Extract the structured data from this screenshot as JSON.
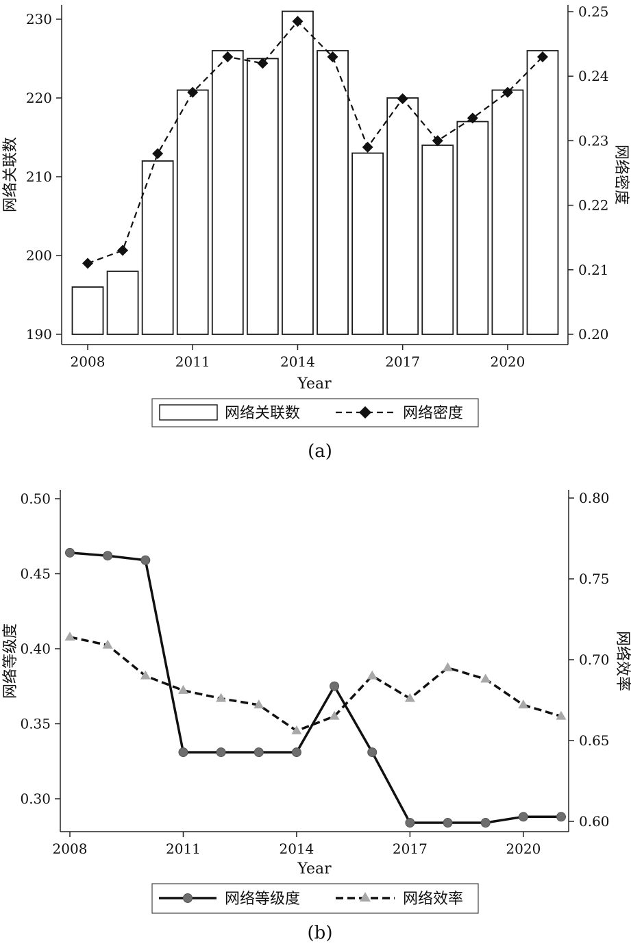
{
  "chart_data": [
    {
      "type": "bar",
      "panel_label": "(a)",
      "x": [
        2008,
        2009,
        2010,
        2011,
        2012,
        2013,
        2014,
        2015,
        2016,
        2017,
        2018,
        2019,
        2020,
        2021
      ],
      "xticks": [
        "2008",
        "2011",
        "2014",
        "2017",
        "2020"
      ],
      "xlabel": "Year",
      "ylabel_left": "网络关联数",
      "ylabel_right": "网络密度",
      "ylim_left": [
        190,
        230
      ],
      "ylim_right": [
        0.2,
        0.25
      ],
      "yticks_left": [
        "190",
        "200",
        "210",
        "220",
        "230"
      ],
      "yticks_right": [
        "0.20",
        "0.21",
        "0.22",
        "0.23",
        "0.24",
        "0.25"
      ],
      "grid": false,
      "legend_position": "bottom",
      "series": [
        {
          "name": "网络关联数",
          "kind": "bar",
          "axis": "left",
          "values": [
            196,
            198,
            212,
            221,
            226,
            225,
            231,
            226,
            213,
            220,
            214,
            217,
            221,
            226
          ]
        },
        {
          "name": "网络密度",
          "kind": "line",
          "style": "dashed",
          "marker": "diamond",
          "axis": "right",
          "values": [
            0.211,
            0.213,
            0.228,
            0.2375,
            0.243,
            0.242,
            0.2485,
            0.243,
            0.229,
            0.2365,
            0.23,
            0.2335,
            0.2375,
            0.243
          ]
        }
      ]
    },
    {
      "type": "line",
      "panel_label": "(b)",
      "x": [
        2008,
        2009,
        2010,
        2011,
        2012,
        2013,
        2014,
        2015,
        2016,
        2017,
        2018,
        2019,
        2020,
        2021
      ],
      "xticks": [
        "2008",
        "2011",
        "2014",
        "2017",
        "2020"
      ],
      "xlabel": "Year",
      "ylabel_left": "网络等级度",
      "ylabel_right": "网络效率",
      "ylim_left": [
        0.28,
        0.5
      ],
      "ylim_right": [
        0.6,
        0.8
      ],
      "yticks_left": [
        "0.30",
        "0.35",
        "0.40",
        "0.45",
        "0.50"
      ],
      "yticks_right": [
        "0.60",
        "0.65",
        "0.70",
        "0.75",
        "0.80"
      ],
      "grid": false,
      "legend_position": "bottom",
      "series": [
        {
          "name": "网络等级度",
          "kind": "line",
          "style": "solid",
          "marker": "circle",
          "axis": "left",
          "values": [
            0.464,
            0.462,
            0.459,
            0.331,
            0.331,
            0.331,
            0.331,
            0.375,
            0.331,
            0.284,
            0.284,
            0.284,
            0.288,
            0.288
          ]
        },
        {
          "name": "网络效率",
          "kind": "line",
          "style": "dashed",
          "marker": "triangle",
          "axis": "right",
          "values": [
            0.714,
            0.709,
            0.69,
            0.681,
            0.676,
            0.672,
            0.656,
            0.665,
            0.69,
            0.676,
            0.695,
            0.688,
            0.672,
            0.665
          ]
        }
      ]
    }
  ]
}
